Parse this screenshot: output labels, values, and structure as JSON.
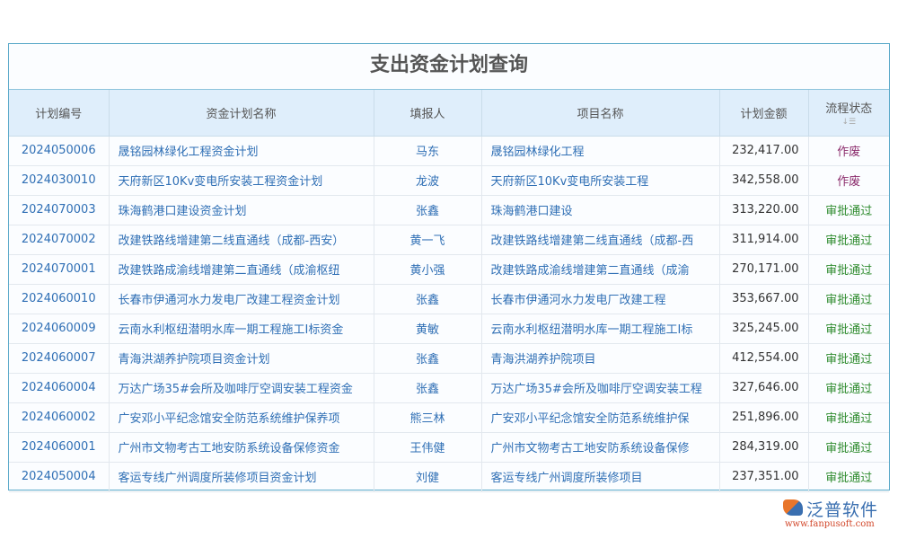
{
  "title": "支出资金计划查询",
  "columns": [
    "计划编号",
    "资金计划名称",
    "填报人",
    "项目名称",
    "计划金额",
    "流程状态"
  ],
  "status_colors": {
    "作废": "#8a2a6b",
    "审批通过": "#2e8b2e"
  },
  "rows": [
    [
      "2024050006",
      "晟铭园林绿化工程资金计划",
      "马东",
      "晟铭园林绿化工程",
      "232,417.00",
      "作废"
    ],
    [
      "2024030010",
      "天府新区10Kv变电所安装工程资金计划",
      "龙波",
      "天府新区10Kv变电所安装工程",
      "342,558.00",
      "作废"
    ],
    [
      "2024070003",
      "珠海鹤港口建设资金计划",
      "张鑫",
      "珠海鹤港口建设",
      "313,220.00",
      "审批通过"
    ],
    [
      "2024070002",
      "改建铁路线增建第二线直通线（成都-西安）",
      "黄一飞",
      "改建铁路线增建第二线直通线（成都-西",
      "311,914.00",
      "审批通过"
    ],
    [
      "2024070001",
      "改建铁路成渝线增建第二直通线（成渝枢纽",
      "黄小强",
      "改建铁路成渝线增建第二直通线（成渝",
      "270,171.00",
      "审批通过"
    ],
    [
      "2024060010",
      "长春市伊通河水力发电厂改建工程资金计划",
      "张鑫",
      "长春市伊通河水力发电厂改建工程",
      "353,667.00",
      "审批通过"
    ],
    [
      "2024060009",
      "云南水利枢纽潜明水库一期工程施工I标资金",
      "黄敏",
      "云南水利枢纽潜明水库一期工程施工I标",
      "325,245.00",
      "审批通过"
    ],
    [
      "2024060007",
      "青海洪湖养护院项目资金计划",
      "张鑫",
      "青海洪湖养护院项目",
      "412,554.00",
      "审批通过"
    ],
    [
      "2024060004",
      "万达广场35#会所及咖啡厅空调安装工程资金",
      "张鑫",
      "万达广场35#会所及咖啡厅空调安装工程",
      "327,646.00",
      "审批通过"
    ],
    [
      "2024060002",
      "广安邓小平纪念馆安全防范系统维护保养项",
      "熊三林",
      "广安邓小平纪念馆安全防范系统维护保",
      "251,896.00",
      "审批通过"
    ],
    [
      "2024060001",
      "广州市文物考古工地安防系统设备保修资金",
      "王伟健",
      "广州市文物考古工地安防系统设备保修",
      "284,319.00",
      "审批通过"
    ],
    [
      "2024050004",
      "客运专线广州调度所装修项目资金计划",
      "刘健",
      "客运专线广州调度所装修项目",
      "237,351.00",
      "审批通过"
    ]
  ],
  "logo": {
    "name": "泛普软件",
    "url": "www.fanpusoft.com"
  }
}
